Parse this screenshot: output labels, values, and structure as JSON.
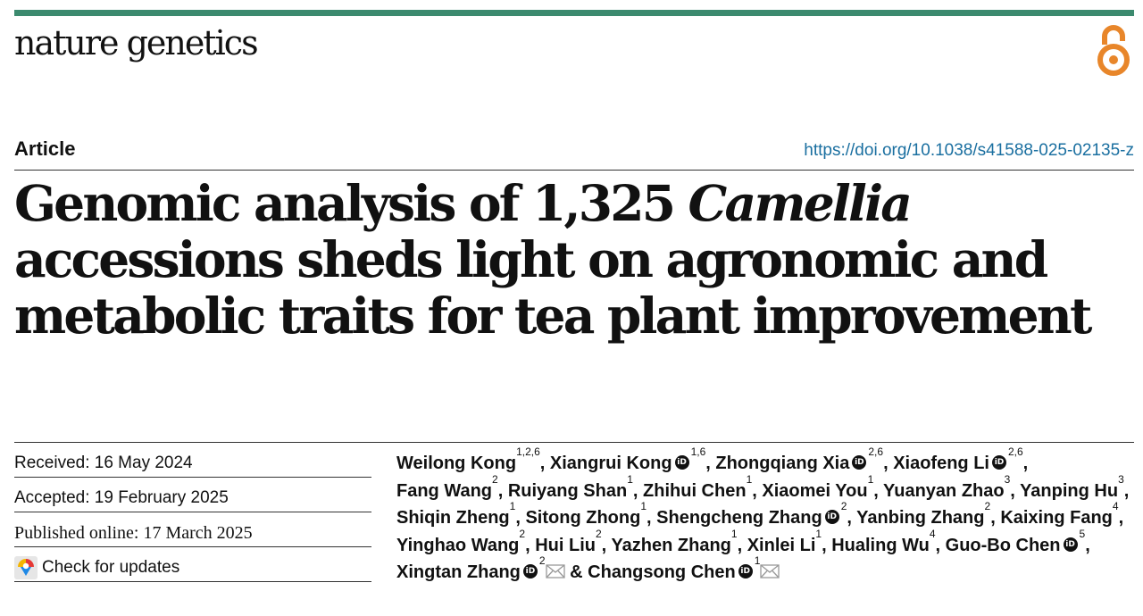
{
  "journal": "nature genetics",
  "article_type": "Article",
  "doi": "https://doi.org/10.1038/s41588-025-02135-z",
  "title": {
    "part1": "Genomic analysis of 1,325 ",
    "italic": "Camellia",
    "part2": " accessions sheds light on agronomic and metabolic traits for tea plant improvement"
  },
  "dates": {
    "received": "Received: 16 May 2024",
    "accepted": "Accepted: 19 February 2025",
    "published": "Published online: 17 March 2025",
    "check_updates": "Check for updates"
  },
  "authors": [
    {
      "name": "Weilong Kong",
      "aff": "1,2,6",
      "orcid": false
    },
    {
      "name": "Xiangrui Kong",
      "aff": "1,6",
      "orcid": true
    },
    {
      "name": "Zhongqiang Xia",
      "aff": "2,6",
      "orcid": true
    },
    {
      "name": "Xiaofeng Li",
      "aff": "2,6",
      "orcid": true
    },
    {
      "name": "Fang Wang",
      "aff": "2",
      "orcid": false
    },
    {
      "name": "Ruiyang Shan",
      "aff": "1",
      "orcid": false
    },
    {
      "name": "Zhihui Chen",
      "aff": "1",
      "orcid": false
    },
    {
      "name": "Xiaomei You",
      "aff": "1",
      "orcid": false
    },
    {
      "name": "Yuanyan Zhao",
      "aff": "3",
      "orcid": false
    },
    {
      "name": "Yanping Hu",
      "aff": "3",
      "orcid": false
    },
    {
      "name": "Shiqin Zheng",
      "aff": "1",
      "orcid": false
    },
    {
      "name": "Sitong Zhong",
      "aff": "1",
      "orcid": false
    },
    {
      "name": "Shengcheng Zhang",
      "aff": "2",
      "orcid": true
    },
    {
      "name": "Yanbing Zhang",
      "aff": "2",
      "orcid": false
    },
    {
      "name": "Kaixing Fang",
      "aff": "4",
      "orcid": false
    },
    {
      "name": "Yinghao Wang",
      "aff": "2",
      "orcid": false
    },
    {
      "name": "Hui Liu",
      "aff": "2",
      "orcid": false
    },
    {
      "name": "Yazhen Zhang",
      "aff": "1",
      "orcid": false
    },
    {
      "name": "Xinlei Li",
      "aff": "1",
      "orcid": false
    },
    {
      "name": "Hualing Wu",
      "aff": "4",
      "orcid": false
    },
    {
      "name": "Guo-Bo Chen",
      "aff": "5",
      "orcid": true
    },
    {
      "name": "Xingtan Zhang",
      "aff": "2",
      "orcid": true,
      "corresponding": true
    },
    {
      "name": "Changsong Chen",
      "aff": "1",
      "orcid": true,
      "corresponding": true
    }
  ],
  "orcid_glyph": "iD",
  "conjunction": "&",
  "separator": ", ",
  "icons": {
    "open_access": "open-access-lock-icon",
    "orcid": "orcid-icon",
    "mail": "mail-icon",
    "updates": "check-updates-icon"
  },
  "colors": {
    "brand_bar": "#3c8a6e",
    "doi_link": "#1a6fa0",
    "open_access": "#e8862a"
  }
}
